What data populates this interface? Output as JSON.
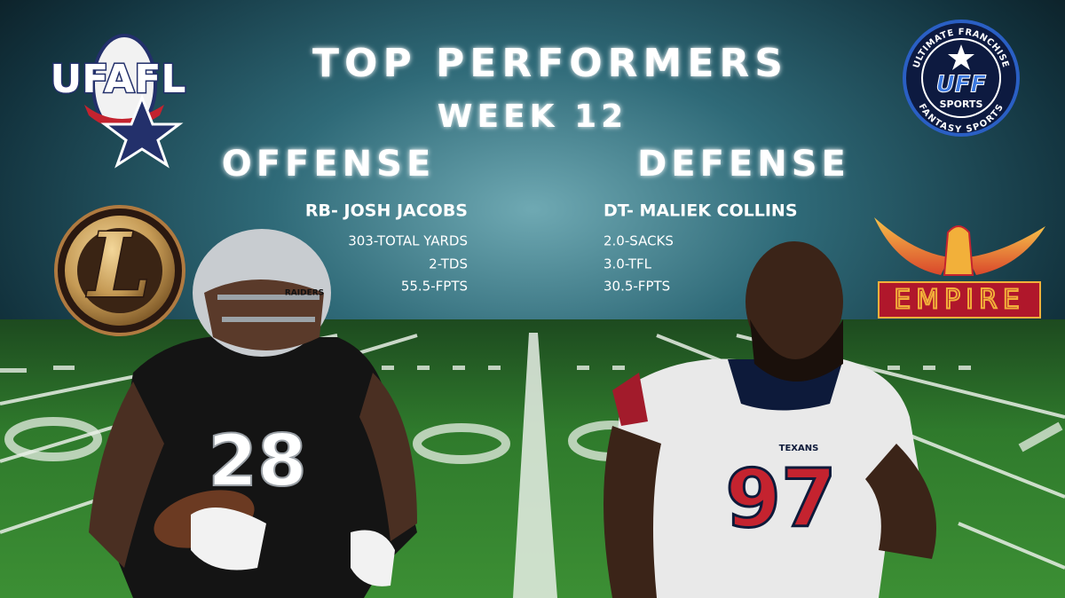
{
  "header": {
    "title": "TOP PERFORMERS",
    "subtitle": "WEEK 12"
  },
  "logos": {
    "league": {
      "text": "UFAFL"
    },
    "sponsor": {
      "top_text": "ULTIMATE FRANCHISE",
      "center": "UFF",
      "sub": "SPORTS",
      "bottom_text": "FANTASY SPORTS"
    }
  },
  "offense": {
    "heading": "OFFENSE",
    "player": "RB- JOSH JACOBS",
    "stats": [
      "303-TOTAL YARDS",
      "2-TDS",
      "55.5-FPTS"
    ],
    "team_logo": "L",
    "jersey": {
      "team": "RAIDERS",
      "number": "28"
    }
  },
  "defense": {
    "heading": "DEFENSE",
    "player": "DT- MALIEK COLLINS",
    "stats": [
      "2.0-SACKS",
      "3.0-TFL",
      "30.5-FPTS"
    ],
    "team_logo": "EMPIRE",
    "jersey": {
      "team": "TEXANS",
      "number": "97"
    }
  }
}
